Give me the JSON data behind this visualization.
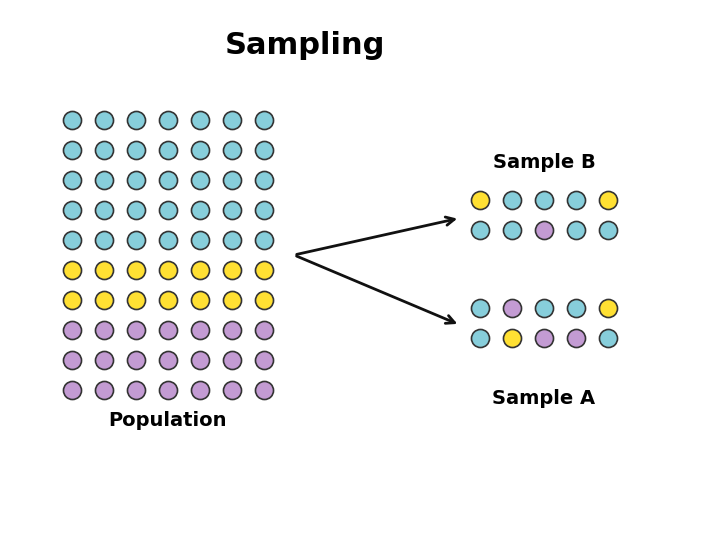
{
  "title": "Sampling",
  "title_fontsize": 22,
  "title_fontweight": "bold",
  "bg_color": "#ffffff",
  "pop_colors_by_row": [
    [
      "teal",
      "teal",
      "teal",
      "teal",
      "teal",
      "teal",
      "teal"
    ],
    [
      "teal",
      "teal",
      "teal",
      "teal",
      "teal",
      "teal",
      "teal"
    ],
    [
      "teal",
      "teal",
      "teal",
      "teal",
      "teal",
      "teal",
      "teal"
    ],
    [
      "teal",
      "teal",
      "teal",
      "teal",
      "teal",
      "teal",
      "teal"
    ],
    [
      "teal",
      "teal",
      "teal",
      "teal",
      "teal",
      "teal",
      "teal"
    ],
    [
      "yellow",
      "yellow",
      "yellow",
      "yellow",
      "yellow",
      "yellow",
      "yellow"
    ],
    [
      "yellow",
      "yellow",
      "yellow",
      "yellow",
      "yellow",
      "yellow",
      "yellow"
    ],
    [
      "purple",
      "purple",
      "purple",
      "purple",
      "purple",
      "purple",
      "purple"
    ],
    [
      "purple",
      "purple",
      "purple",
      "purple",
      "purple",
      "purple",
      "purple"
    ],
    [
      "purple",
      "purple",
      "purple",
      "purple",
      "purple",
      "purple",
      "purple"
    ]
  ],
  "pop_label": "Population",
  "pop_label_fontsize": 14,
  "pop_label_fontweight": "bold",
  "sampleB_label": "Sample B",
  "sampleB_label_fontsize": 14,
  "sampleB_label_fontweight": "bold",
  "sampleB_colors": [
    [
      "yellow",
      "teal",
      "teal",
      "teal",
      "yellow"
    ],
    [
      "teal",
      "teal",
      "purple",
      "teal",
      "teal"
    ]
  ],
  "sampleA_label": "Sample A",
  "sampleA_label_fontsize": 14,
  "sampleA_label_fontweight": "bold",
  "sampleA_colors": [
    [
      "teal",
      "purple",
      "teal",
      "teal",
      "yellow"
    ],
    [
      "teal",
      "yellow",
      "purple",
      "purple",
      "teal"
    ]
  ],
  "teal_color": "#87CEDB",
  "yellow_color": "#FFE033",
  "purple_color": "#C39BD3",
  "circle_edgecolor": "#333333",
  "circle_size": 13,
  "circle_linewidth": 1.2,
  "arrow_color": "#111111",
  "arrow_linewidth": 2.0
}
